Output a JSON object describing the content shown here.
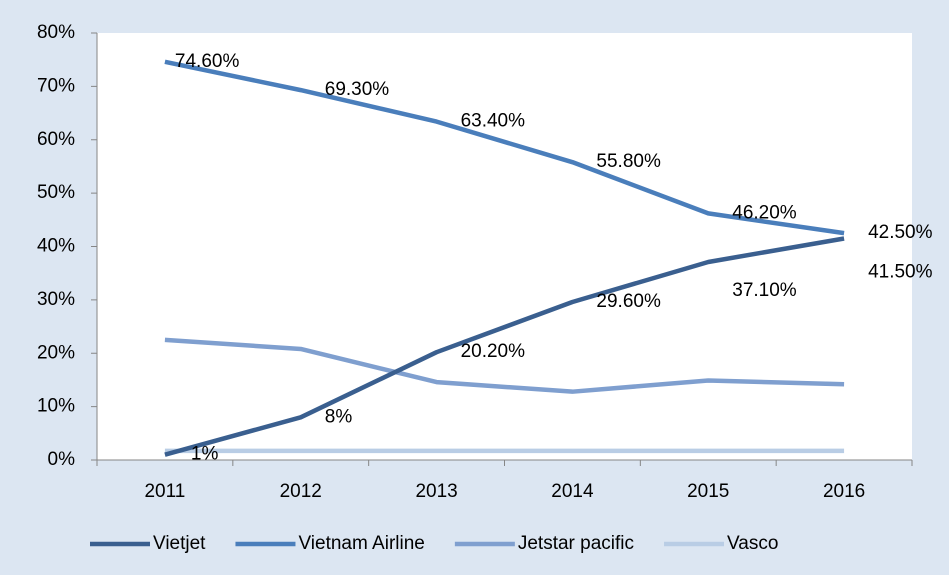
{
  "chart_data": {
    "type": "line",
    "categories": [
      "2011",
      "2012",
      "2013",
      "2014",
      "2015",
      "2016"
    ],
    "series": [
      {
        "name": "Vietjet",
        "color": "#3a5f8f",
        "values": [
          1,
          8,
          20.2,
          29.6,
          37.1,
          41.5
        ],
        "value_labels": [
          "1%",
          "8%",
          "20.20%",
          "29.60%",
          "37.10%",
          "41.50%"
        ]
      },
      {
        "name": "Vietnam Airline",
        "color": "#4a7ebb",
        "values": [
          74.6,
          69.3,
          63.4,
          55.8,
          46.2,
          42.5
        ],
        "value_labels": [
          "74.60%",
          "69.30%",
          "63.40%",
          "55.80%",
          "46.20%",
          "42.50%"
        ]
      },
      {
        "name": "Jetstar pacific",
        "color": "#7f9fcf",
        "values": [
          22.5,
          20.8,
          14.6,
          12.8,
          14.9,
          14.2
        ]
      },
      {
        "name": "Vasco",
        "color": "#b9cde5",
        "values": [
          1.7,
          1.7,
          1.7,
          1.7,
          1.7,
          1.7
        ]
      }
    ],
    "ylim": [
      0,
      80
    ],
    "yticks": [
      {
        "value": 0,
        "label": "0%"
      },
      {
        "value": 10,
        "label": "10%"
      },
      {
        "value": 20,
        "label": "20%"
      },
      {
        "value": 30,
        "label": "30%"
      },
      {
        "value": 40,
        "label": "40%"
      },
      {
        "value": 50,
        "label": "50%"
      },
      {
        "value": 60,
        "label": "60%"
      },
      {
        "value": 70,
        "label": "70%"
      },
      {
        "value": 80,
        "label": "80%"
      }
    ],
    "legend": "bottom"
  }
}
